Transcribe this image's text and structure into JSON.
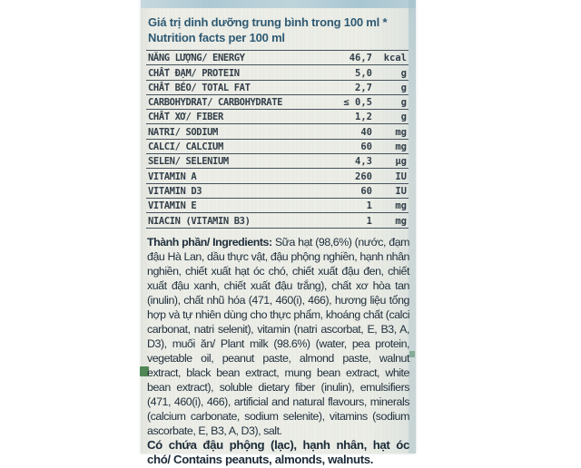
{
  "colors": {
    "page_background": "#ffffff",
    "carton_background": "#eceee7",
    "top_band_blue": "#aec9d4",
    "header_text": "#2f5a73",
    "table_text": "#323e48",
    "table_line": "#46525c",
    "body_text": "#1f2e3b",
    "green_mark": "#3e7b45"
  },
  "label": {
    "header": {
      "line_vi": "Giá trị dinh dưỡng trung bình trong 100 ml *",
      "line_en": "Nutrition facts per 100 ml"
    },
    "nutrition_table": {
      "rows": [
        {
          "name": "NĂNG LƯỢNG/ ENERGY",
          "value": "46,7",
          "unit": "kcal"
        },
        {
          "name": "CHẤT ĐẠM/ PROTEIN",
          "value": "5,0",
          "unit": "g"
        },
        {
          "name": "CHẤT BÉO/ TOTAL FAT",
          "value": "2,7",
          "unit": "g"
        },
        {
          "name": "CARBOHYDRAT/ CARBOHYDRATE",
          "value": "≤ 0,5",
          "unit": "g"
        },
        {
          "name": "CHẤT XƠ/ FIBER",
          "value": "1,2",
          "unit": "g"
        },
        {
          "name": "NATRI/ SODIUM",
          "value": "40",
          "unit": "mg"
        },
        {
          "name": "CALCI/ CALCIUM",
          "value": "60",
          "unit": "mg"
        },
        {
          "name": "SELEN/ SELENIUM",
          "value": "4,3",
          "unit": "µg"
        },
        {
          "name": "VITAMIN A",
          "value": "260",
          "unit": "IU"
        },
        {
          "name": "VITAMIN D3",
          "value": "60",
          "unit": "IU"
        },
        {
          "name": "VITAMIN E",
          "value": "1",
          "unit": "mg"
        },
        {
          "name": "NIACIN (VITAMIN B3)",
          "value": "1",
          "unit": "mg"
        }
      ]
    },
    "ingredients": {
      "label": "Thành phần/ Ingredients:",
      "text": "Sữa hạt (98,6%) (nước, đạm đậu Hà Lan, dầu thực vật, đậu phộng nghiền, hạnh nhân nghiền, chiết xuất hạt óc chó, chiết xuất đậu đen, chiết xuất đậu xanh, chiết xuất đậu trắng), chất xơ hòa tan (inulin), chất nhũ hóa (471, 460(i), 466), hương liệu tổng hợp và tự nhiên dùng cho thực phẩm, khoáng chất (calci carbonat, natri selenit), vitamin (natri ascorbat, E, B3, A, D3), muối ăn/ Plant milk (98.6%) (water, pea protein, vegetable oil, peanut paste, almond paste, walnut extract, black bean extract, mung bean extract, white bean extract), soluble dietary fiber (inulin), emulsifiers (471, 460(i), 466), artificial and natural flavours, minerals (calcium carbonate, sodium selenite), vitamins (sodium ascorbate, E, B3, A, D3), salt."
    },
    "allergen": "Có chứa đậu phộng (lạc), hạnh nhân, hạt óc chó/ Contains peanuts, almonds, walnuts."
  }
}
